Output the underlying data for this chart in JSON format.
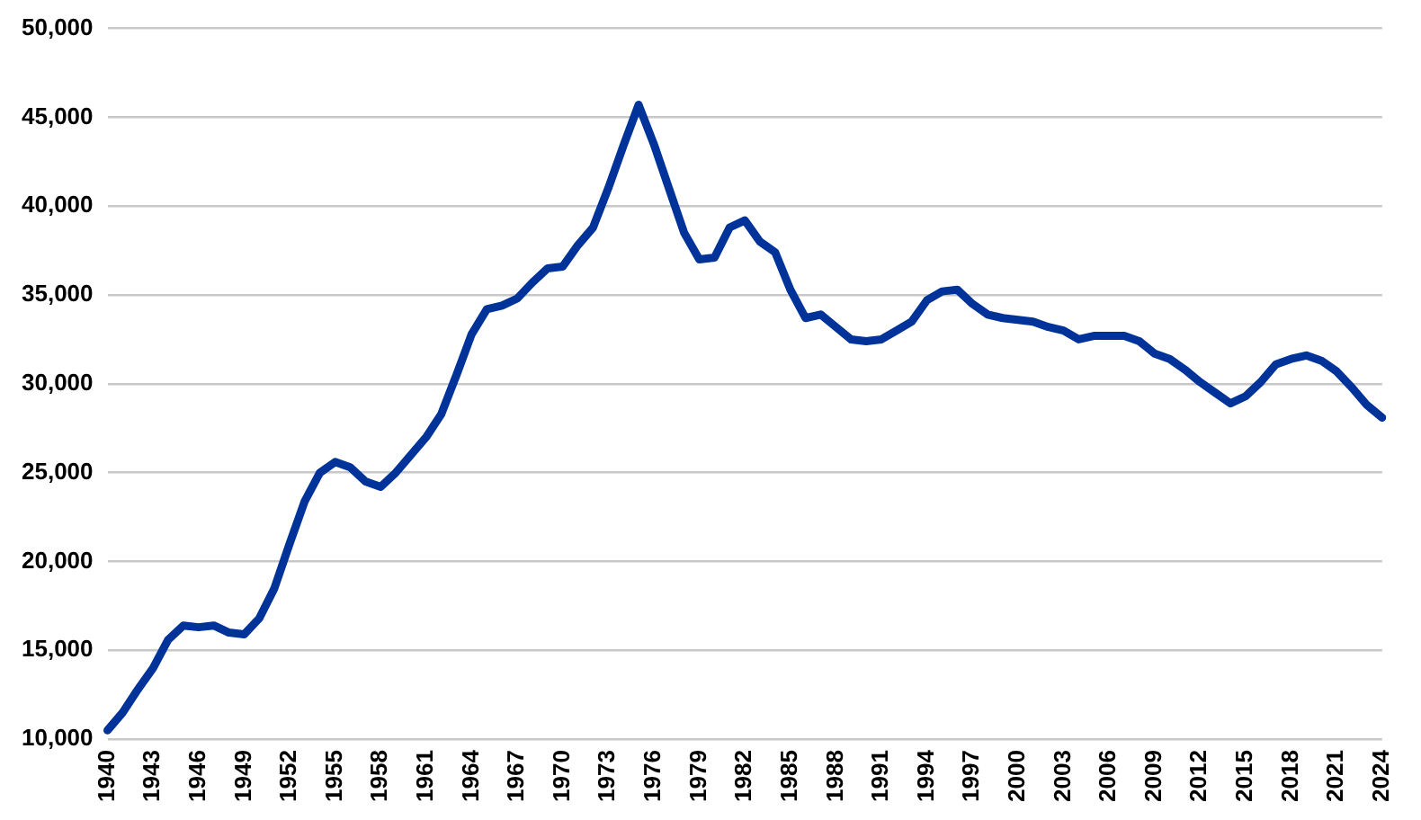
{
  "chart_data": {
    "type": "line",
    "categories": [
      "1940",
      null,
      null,
      "1943",
      null,
      null,
      "1946",
      null,
      null,
      "1949",
      null,
      null,
      "1952",
      null,
      null,
      "1955",
      null,
      null,
      "1958",
      null,
      null,
      "1961",
      null,
      null,
      "1964",
      null,
      null,
      "1967",
      null,
      null,
      "1970",
      null,
      null,
      "1973",
      null,
      null,
      "1976",
      null,
      null,
      "1979",
      null,
      null,
      "1982",
      null,
      null,
      "1985",
      null,
      null,
      "1988",
      null,
      null,
      "1991",
      null,
      null,
      "1994",
      null,
      null,
      "1997",
      null,
      null,
      "2000",
      null,
      null,
      "2003",
      null,
      null,
      "2006",
      null,
      null,
      "2009",
      null,
      null,
      "2012",
      null,
      null,
      "2015",
      null,
      null,
      "2018",
      null,
      null,
      "2021",
      null,
      null,
      "2024"
    ],
    "series": [
      {
        "color": "#003399",
        "values": [
          10500,
          11500,
          12800,
          14000,
          15600,
          16400,
          16300,
          16400,
          16000,
          15900,
          16800,
          18500,
          21000,
          23400,
          25000,
          25600,
          25300,
          24500,
          24200,
          25000,
          26000,
          27000,
          28300,
          30500,
          32800,
          34200,
          34400,
          34800,
          35700,
          36500,
          36600,
          37800,
          38800,
          41000,
          43400,
          45700,
          43500,
          41000,
          38500,
          37000,
          37100,
          38800,
          39200,
          38000,
          37400,
          35300,
          33700,
          33900,
          33200,
          32500,
          32400,
          32500,
          33000,
          33500,
          34700,
          35200,
          35300,
          34500,
          33900,
          33700,
          33600,
          33500,
          33200,
          33000,
          32500,
          32700,
          32700,
          32700,
          32400,
          31700,
          31400,
          30800,
          30100,
          29500,
          28900,
          29300,
          30100,
          31100,
          31400,
          31600,
          31300,
          30700,
          29800,
          28800,
          28100
        ]
      }
    ],
    "ylim": [
      10000,
      50000
    ],
    "yticks": [
      {
        "value": 10000,
        "label": "10,000"
      },
      {
        "value": 15000,
        "label": "15,000"
      },
      {
        "value": 20000,
        "label": "20,000"
      },
      {
        "value": 25000,
        "label": "25,000"
      },
      {
        "value": 30000,
        "label": "30,000"
      },
      {
        "value": 35000,
        "label": "35,000"
      },
      {
        "value": 40000,
        "label": "40,000"
      },
      {
        "value": 45000,
        "label": "45,000"
      },
      {
        "value": 50000,
        "label": "50,000"
      }
    ],
    "grid": "y",
    "legend": false,
    "marker": "none",
    "line_style": "solid"
  }
}
